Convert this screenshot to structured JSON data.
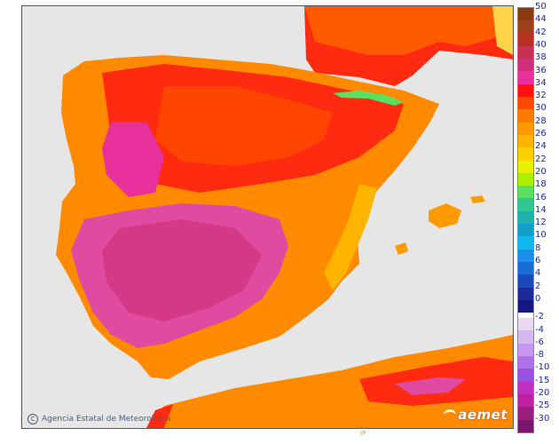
{
  "credit": {
    "text": "Agencia Estatal de Meteorología",
    "icon": "copyright-icon"
  },
  "brand": {
    "text": "aemet",
    "icon": "aemet-logo-icon"
  },
  "bottom_mark": "IP",
  "legend": {
    "labels": [
      "50",
      "44",
      "42",
      "40",
      "38",
      "36",
      "34",
      "32",
      "30",
      "28",
      "26",
      "24",
      "22",
      "20",
      "18",
      "16",
      "14",
      "12",
      "10",
      "8",
      "6",
      "4",
      "2",
      "0",
      "-2",
      "-4",
      "-6",
      "-8",
      "-10",
      "-15",
      "-20",
      "-25",
      "-30"
    ],
    "colors": [
      "#8b3a0f",
      "#a0401a",
      "#b83020",
      "#c83055",
      "#d0307a",
      "#e8309a",
      "#ff1010",
      "#ff4a00",
      "#ff7a00",
      "#ff9a00",
      "#ffb400",
      "#ffd000",
      "#e6f000",
      "#a8f000",
      "#58e060",
      "#30c890",
      "#20b0b0",
      "#10a0c8",
      "#10b8f0",
      "#1a8ee8",
      "#1a6cd8",
      "#1a4ab8",
      "#1a2a98",
      "#141880",
      "#e8d8f0",
      "#d8b8f0",
      "#c898f0",
      "#b070e8",
      "#9850e0",
      "#c030c0",
      "#c020a0",
      "#9a2080",
      "#7a1870"
    ],
    "gap_after_index": 23
  }
}
